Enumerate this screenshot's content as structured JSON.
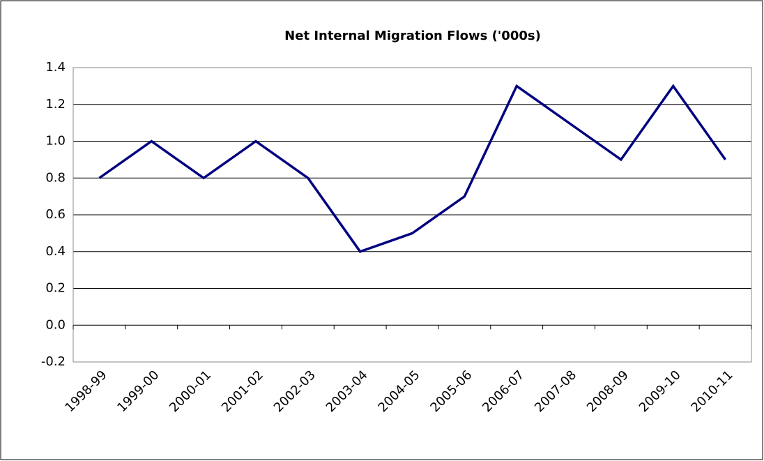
{
  "chart_data": {
    "type": "line",
    "title": "Net Internal Migration Flows ('000s)",
    "categories": [
      "1998-99",
      "1999-00",
      "2000-01",
      "2001-02",
      "2002-03",
      "2003-04",
      "2004-05",
      "2005-06",
      "2006-07",
      "2007-08",
      "2008-09",
      "2009-10",
      "2010-11"
    ],
    "values": [
      0.8,
      1.0,
      0.8,
      1.0,
      0.8,
      0.4,
      0.5,
      0.7,
      1.3,
      1.1,
      0.9,
      1.3,
      0.9
    ],
    "color": "#000080",
    "ylim": [
      -0.2,
      1.4
    ],
    "yticks": [
      -0.2,
      {
        "value": 0,
        "label": "0.0"
      },
      0.2,
      0.4,
      0.6,
      0.8,
      {
        "value": 1,
        "label": "1.0"
      },
      1.2,
      1.4
    ],
    "grid": true
  }
}
